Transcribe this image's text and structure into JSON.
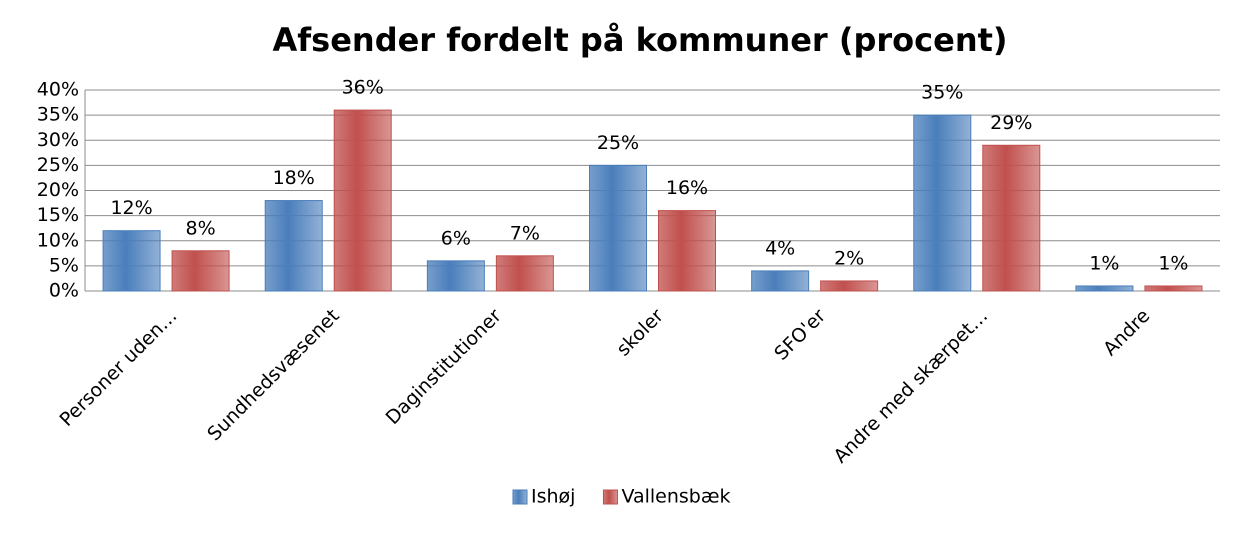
{
  "chart_data": {
    "type": "bar",
    "title": "Afsender fordelt på kommuner (procent)",
    "categories": [
      "Personer uden…",
      "Sundhedsvæsenet",
      "Daginstitutioner",
      "skoler",
      "SFO'er",
      "Andre med skærpet…",
      "Andre"
    ],
    "series": [
      {
        "name": "Ishøj",
        "color": "#4a7ebb",
        "values": [
          12,
          18,
          6,
          25,
          4,
          35,
          1
        ],
        "value_labels": [
          "12%",
          "18%",
          "6%",
          "25%",
          "4%",
          "35%",
          "1%"
        ]
      },
      {
        "name": "Vallensbæk",
        "color": "#c0504d",
        "values": [
          8,
          36,
          7,
          16,
          2,
          29,
          1
        ],
        "value_labels": [
          "8%",
          "36%",
          "7%",
          "16%",
          "2%",
          "29%",
          "1%"
        ]
      }
    ],
    "ylim": [
      0,
      40
    ],
    "yticks": [
      {
        "value": 0,
        "label": "0%"
      },
      {
        "value": 5,
        "label": "5%"
      },
      {
        "value": 10,
        "label": "10%"
      },
      {
        "value": 15,
        "label": "15%"
      },
      {
        "value": 20,
        "label": "20%"
      },
      {
        "value": 25,
        "label": "25%"
      },
      {
        "value": 30,
        "label": "30%"
      },
      {
        "value": 35,
        "label": "35%"
      },
      {
        "value": 40,
        "label": "40%"
      }
    ],
    "grid": true,
    "legend": "bottom"
  }
}
